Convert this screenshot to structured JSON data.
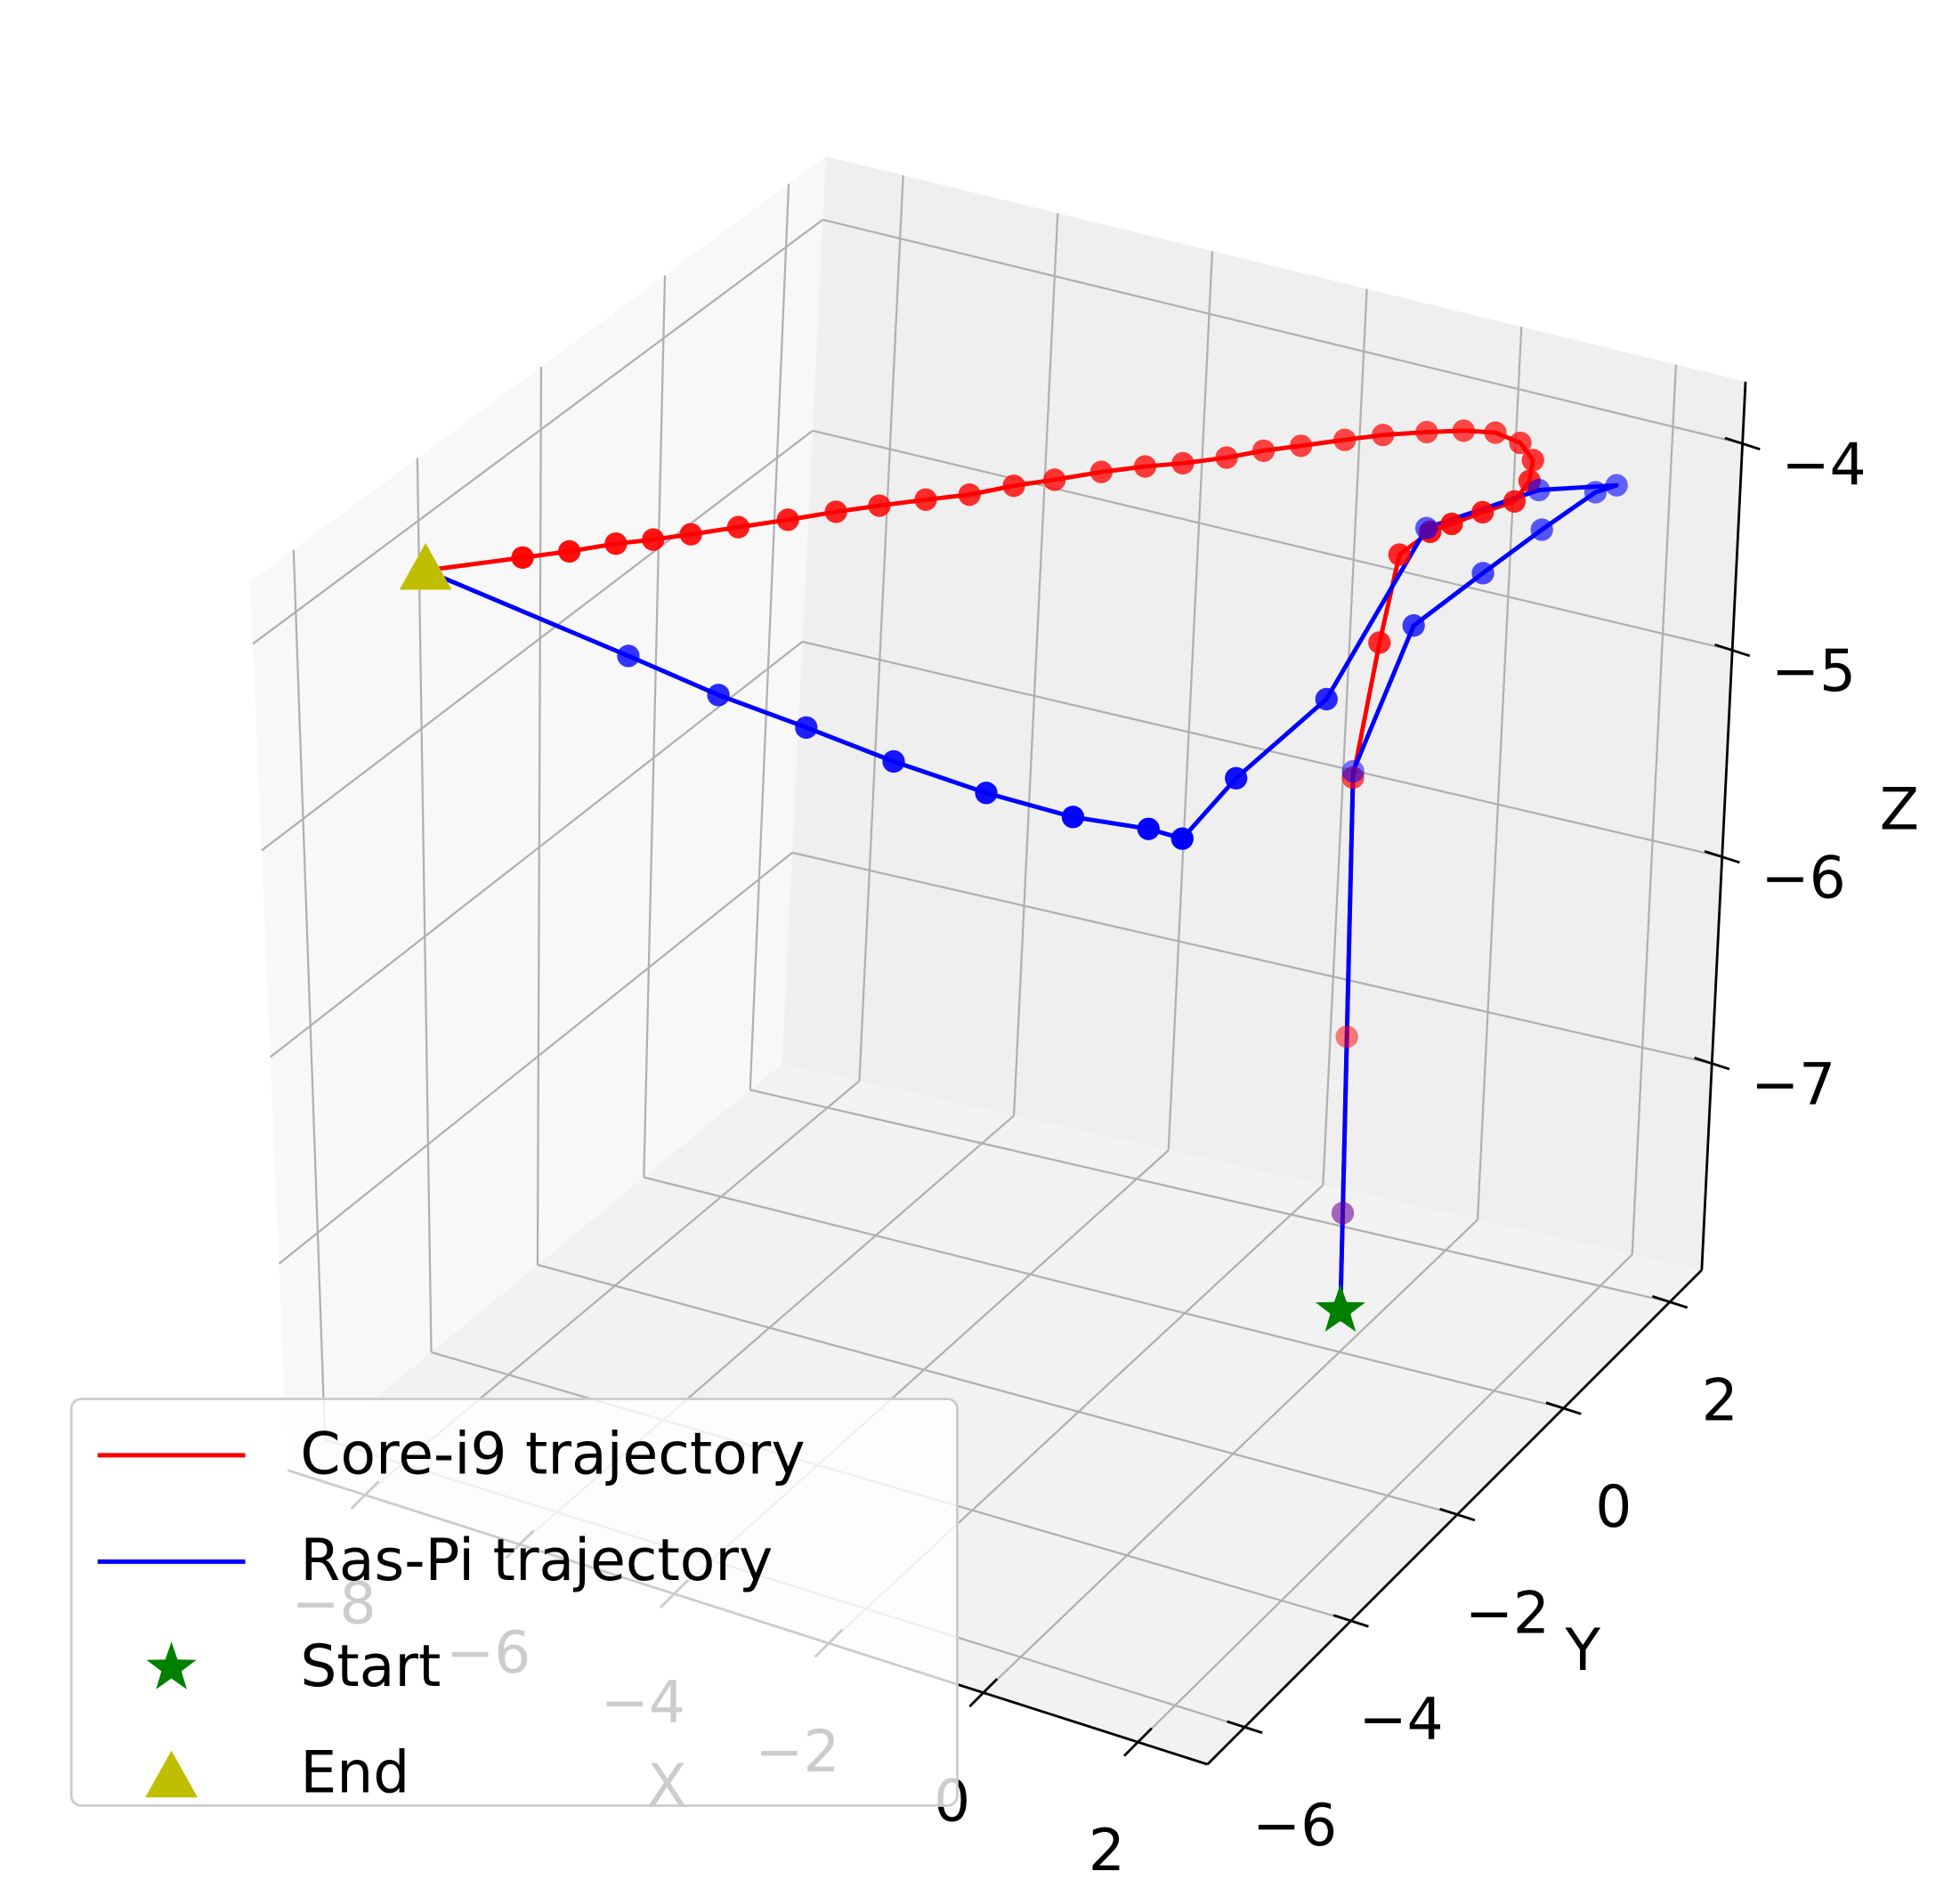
{
  "chart_data": {
    "type": "line3d",
    "xlabel": "X",
    "ylabel": "Y",
    "zlabel": "Z",
    "xlim": [
      -9,
      2.9
    ],
    "ylim": [
      -6.7,
      2.6
    ],
    "zlim": [
      -8,
      -3.7
    ],
    "xticks": [
      {
        "value": -8,
        "label": "−8"
      },
      {
        "value": -6,
        "label": "−6"
      },
      {
        "value": -4,
        "label": "−4"
      },
      {
        "value": -2,
        "label": "−2"
      },
      0,
      2
    ],
    "yticks": [
      {
        "value": -6,
        "label": "−6"
      },
      {
        "value": -4,
        "label": "−4"
      },
      {
        "value": -2,
        "label": "−2"
      },
      0,
      2
    ],
    "zticks": [
      {
        "value": -7,
        "label": "−7"
      },
      {
        "value": -6,
        "label": "−6"
      },
      {
        "value": -5,
        "label": "−5"
      },
      {
        "value": -4,
        "label": "−4"
      }
    ],
    "grid": true,
    "legend": "lower left",
    "series": [
      {
        "name": "Core-i9 trajectory",
        "color": "#ff0000",
        "x": [
          0,
          0,
          0,
          0,
          0.3,
          0.3,
          0.81,
          0.93,
          1.1,
          1.29,
          1.2,
          0.99,
          0.66,
          0.29,
          -0.05,
          -0.4,
          -0.8,
          -1.12,
          -1.48,
          -1.79,
          -2.07,
          -2.43,
          -2.76,
          -3.12,
          -3.48,
          -3.8,
          -4.12,
          -4.48,
          -4.85,
          -5.19,
          -5.55,
          -5.93,
          -6.29,
          -6.58,
          -6.88,
          -7.22,
          -7.58,
          -8.32
        ],
        "y": [
          0,
          0,
          0,
          0,
          0,
          0.3,
          0.14,
          0.34,
          0.63,
          0.91,
          1.27,
          1.59,
          1.8,
          1.86,
          1.77,
          1.61,
          1.4,
          1.18,
          0.92,
          0.7,
          0.45,
          0.19,
          -0.01,
          -0.27,
          -0.58,
          -0.84,
          -1.16,
          -1.42,
          -1.71,
          -1.99,
          -2.32,
          -2.65,
          -2.97,
          -3.22,
          -3.45,
          -3.78,
          -4.09,
          -4.74
        ],
        "z": [
          -7.8,
          -7.33,
          -6.48,
          -5.23,
          -4.55,
          -4.2,
          -4,
          -4,
          -4,
          -4,
          -4,
          -4,
          -4,
          -4,
          -4,
          -4,
          -4,
          -4,
          -4,
          -4,
          -4,
          -4,
          -4,
          -4,
          -4,
          -4,
          -4,
          -4,
          -4,
          -4,
          -4,
          -4,
          -4,
          -4,
          -4,
          -4,
          -4,
          -4
        ]
      },
      {
        "name": "Ras-Pi trajectory",
        "color": "#0000ff",
        "x": [
          0,
          0,
          0,
          1.73,
          1.81,
          1.89,
          1.99,
          2.12,
          1.4,
          0.73,
          1.72,
          1.74,
          1.9,
          1.47,
          0.62,
          -0.47,
          -1.7,
          -2.91,
          -4.11,
          -5.41,
          -8.32
        ],
        "y": [
          0,
          0,
          0,
          -1.29,
          -0.26,
          0.6,
          1.35,
          1.53,
          1.17,
          0.18,
          -2.7,
          -4.2,
          -5.28,
          -5.29,
          -5.45,
          -5.49,
          -5.45,
          -5.35,
          -5.27,
          -5.1,
          -4.74
        ],
        "z": [
          -7.8,
          -7.33,
          -5.2,
          -4,
          -4,
          -4,
          -4,
          -4,
          -4,
          -4,
          -4,
          -4,
          -4,
          -4,
          -4,
          -4,
          -4,
          -4,
          -4,
          -4,
          -4
        ]
      }
    ],
    "points": [
      {
        "name": "Start",
        "color": "#008000",
        "marker": "star",
        "x": [
          0
        ],
        "y": [
          0
        ],
        "z": [
          -7.8
        ]
      },
      {
        "name": "End",
        "color": "#bfbf00",
        "marker": "triangle",
        "x": [
          -8.32
        ],
        "y": [
          -4.74
        ],
        "z": [
          -4
        ]
      }
    ]
  }
}
